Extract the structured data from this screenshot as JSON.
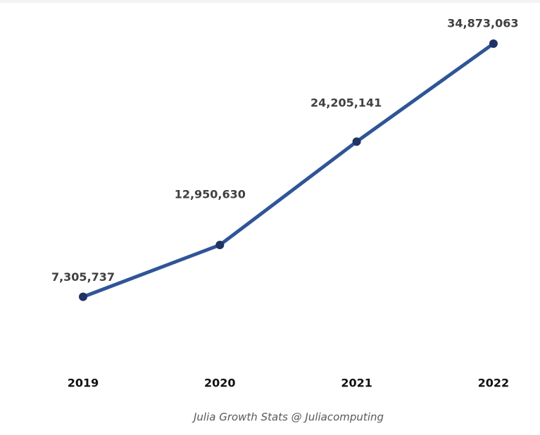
{
  "chart_data": {
    "type": "line",
    "categories": [
      "2019",
      "2020",
      "2021",
      "2022"
    ],
    "series": [
      {
        "color": "#2f5597",
        "values": [
          7305737,
          12950630,
          24205141,
          34873063
        ],
        "value_labels": [
          "7,305,737",
          "12,950,630",
          "24,205,141",
          "34,873,063"
        ]
      }
    ],
    "caption": "Julia Growth Stats @ Juliacomputing"
  }
}
